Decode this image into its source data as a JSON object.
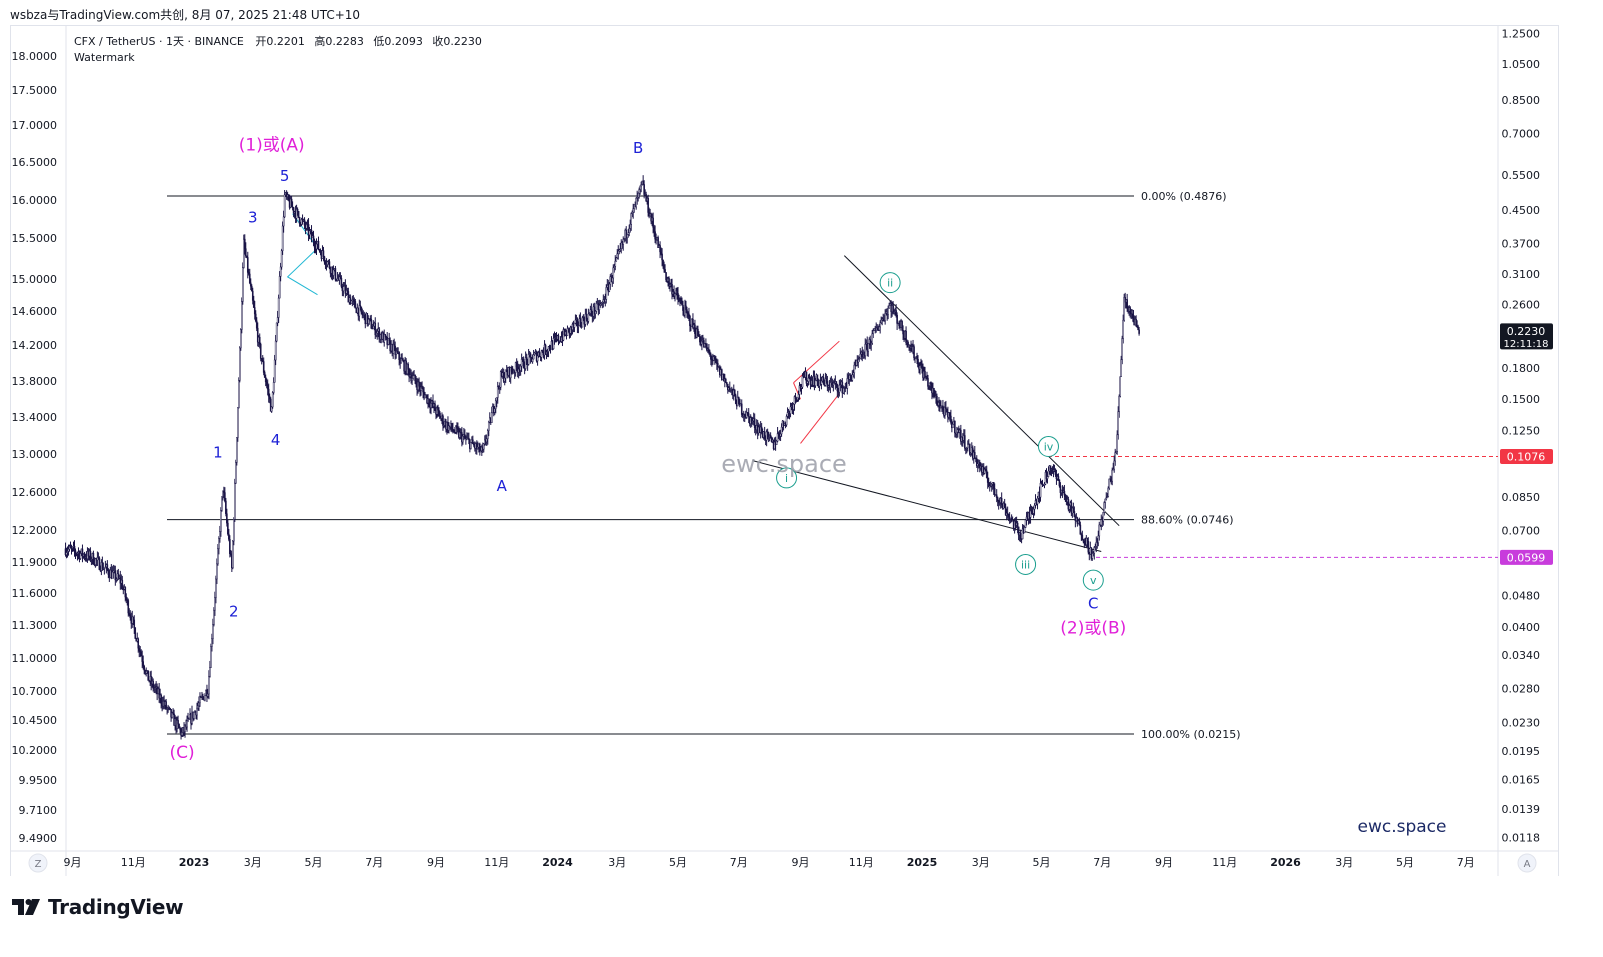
{
  "header": {
    "text": "wsbza与TradingView.com共创, 8月 07, 2025 21:48 UTC+10"
  },
  "legend": {
    "symbol": "CFX / TetherUS · 1天 · BINANCE",
    "open_label": "开",
    "open": "0.2201",
    "high_label": "高",
    "high": "0.2283",
    "low_label": "低",
    "low": "0.2093",
    "close_label": "收",
    "close": "0.2230",
    "watermark_label": "Watermark"
  },
  "watermark_center": "ewc.space",
  "brand_label": "ewc.space",
  "footer": {
    "brand": "TradingView"
  },
  "axis_buttons": {
    "left": "Z",
    "right": "A"
  },
  "colors": {
    "candles": "#1a1446",
    "wave_blue": "#1e22d6",
    "wave_magenta": "#e020d8",
    "wave_teal": "#1a9e8e",
    "fib_line": "#131722",
    "red_dashed": "#f23645",
    "purple_dashed": "#c83cdc",
    "cyan_triangle": "#22b8d4",
    "red_channel": "#f23645",
    "price_tag_dark": "#131722"
  },
  "chart_data": {
    "type": "candlestick",
    "title": "CFX / TetherUS · 1天 · BINANCE",
    "scale": "log",
    "x_ticks": [
      "9月",
      "11月",
      "2023",
      "3月",
      "5月",
      "7月",
      "9月",
      "11月",
      "2024",
      "3月",
      "5月",
      "7月",
      "9月",
      "11月",
      "2025",
      "3月",
      "5月",
      "7月",
      "9月",
      "11月",
      "2026",
      "3月",
      "5月",
      "7月"
    ],
    "right_axis_ticks": [
      "1.2500",
      "1.0500",
      "0.8500",
      "0.7000",
      "0.5500",
      "0.4500",
      "0.3700",
      "0.3100",
      "0.2600",
      "0.1800",
      "0.1500",
      "0.1250",
      "0.0850",
      "0.0700",
      "0.0480",
      "0.0400",
      "0.0340",
      "0.0280",
      "0.0230",
      "0.0195",
      "0.0165",
      "0.0139",
      "0.0118"
    ],
    "left_axis_ticks": [
      "18.0000",
      "17.5000",
      "17.0000",
      "16.5000",
      "16.0000",
      "15.5000",
      "15.0000",
      "14.6000",
      "14.2000",
      "13.8000",
      "13.4000",
      "13.0000",
      "12.6000",
      "12.2000",
      "11.9000",
      "11.6000",
      "11.3000",
      "11.0000",
      "10.7000",
      "10.4500",
      "10.2000",
      "9.9500",
      "9.7100",
      "9.4900"
    ],
    "price_tags": [
      {
        "value": "0.2230",
        "countdown": "12:11:18",
        "kind": "last"
      },
      {
        "value": "0.1076",
        "kind": "red-level"
      },
      {
        "value": "0.0599",
        "kind": "purple-level"
      }
    ],
    "fib_levels": [
      {
        "label": "0.00% (0.4876)",
        "price": 0.4876
      },
      {
        "label": "88.60% (0.0746)",
        "price": 0.0746
      },
      {
        "label": "100.00% (0.0215)",
        "price": 0.0215
      }
    ],
    "path_waypoints": [
      {
        "date": "2022-08-25",
        "price": 0.063
      },
      {
        "date": "2022-09-20",
        "price": 0.06
      },
      {
        "date": "2022-10-20",
        "price": 0.052
      },
      {
        "date": "2022-11-15",
        "price": 0.03
      },
      {
        "date": "2022-12-20",
        "price": 0.0215
      },
      {
        "date": "2023-01-15",
        "price": 0.028
      },
      {
        "date": "2023-01-30",
        "price": 0.09
      },
      {
        "date": "2023-02-08",
        "price": 0.056
      },
      {
        "date": "2023-02-20",
        "price": 0.37
      },
      {
        "date": "2023-03-08",
        "price": 0.2
      },
      {
        "date": "2023-03-20",
        "price": 0.14
      },
      {
        "date": "2023-04-02",
        "price": 0.487
      },
      {
        "date": "2023-04-25",
        "price": 0.4
      },
      {
        "date": "2023-06-10",
        "price": 0.26
      },
      {
        "date": "2023-07-20",
        "price": 0.2
      },
      {
        "date": "2023-09-10",
        "price": 0.13
      },
      {
        "date": "2023-10-18",
        "price": 0.11
      },
      {
        "date": "2023-11-05",
        "price": 0.17
      },
      {
        "date": "2023-12-20",
        "price": 0.2
      },
      {
        "date": "2024-02-15",
        "price": 0.26
      },
      {
        "date": "2024-03-26",
        "price": 0.52
      },
      {
        "date": "2024-04-20",
        "price": 0.3
      },
      {
        "date": "2024-05-20",
        "price": 0.22
      },
      {
        "date": "2024-07-05",
        "price": 0.14
      },
      {
        "date": "2024-08-05",
        "price": 0.115
      },
      {
        "date": "2024-09-05",
        "price": 0.17
      },
      {
        "date": "2024-10-15",
        "price": 0.16
      },
      {
        "date": "2024-11-30",
        "price": 0.26
      },
      {
        "date": "2025-01-15",
        "price": 0.15
      },
      {
        "date": "2025-02-20",
        "price": 0.11
      },
      {
        "date": "2025-04-10",
        "price": 0.068
      },
      {
        "date": "2025-05-10",
        "price": 0.102
      },
      {
        "date": "2025-06-22",
        "price": 0.0599
      },
      {
        "date": "2025-07-15",
        "price": 0.11
      },
      {
        "date": "2025-07-23",
        "price": 0.27
      },
      {
        "date": "2025-08-07",
        "price": 0.223
      }
    ],
    "wave_labels": [
      {
        "text": "(C)",
        "color": "magenta"
      },
      {
        "text": "1",
        "color": "blue"
      },
      {
        "text": "2",
        "color": "blue"
      },
      {
        "text": "3",
        "color": "blue"
      },
      {
        "text": "4",
        "color": "blue"
      },
      {
        "text": "5",
        "color": "blue"
      },
      {
        "text": "(1)或(A)",
        "color": "magenta"
      },
      {
        "text": "A",
        "color": "blue"
      },
      {
        "text": "B",
        "color": "blue"
      },
      {
        "text": "C",
        "color": "blue"
      },
      {
        "text": "(2)或(B)",
        "color": "magenta"
      }
    ],
    "circled_labels": [
      "i",
      "ii",
      "iii",
      "iv",
      "v"
    ]
  }
}
